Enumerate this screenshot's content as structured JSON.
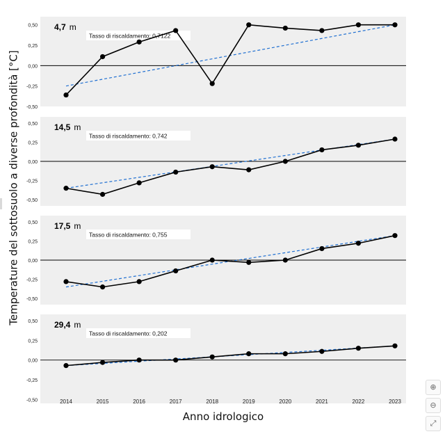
{
  "ylabel": "Temperature del sottosuolo a diverse profondità [°C]",
  "xlabel": "Anno idrologico",
  "toolbar": {
    "zoom_in_icon": "zoom-in-icon",
    "zoom_out_icon": "zoom-out-icon",
    "expand_icon": "expand-icon"
  },
  "colors": {
    "panel_bg": "#efefef",
    "line": "#000000",
    "trend": "#1f6fd1",
    "zero_line": "#000000"
  },
  "chart_data": [
    {
      "type": "line",
      "depth": "4,7",
      "unit": "m",
      "annotation": "Tasso di riscaldamento: 0,7122",
      "x": [
        2014,
        2015,
        2016,
        2017,
        2018,
        2019,
        2020,
        2021,
        2022,
        2023
      ],
      "values": [
        -0.36,
        0.11,
        0.29,
        0.43,
        -0.22,
        0.5,
        0.46,
        0.43,
        0.5,
        0.5
      ],
      "trend": [
        -0.25,
        0.5
      ],
      "ylim": [
        -0.5,
        0.6
      ],
      "yticks": [
        "-0,50",
        "-0,25",
        "0,00",
        "0,25",
        "0,50"
      ],
      "ytick_values": [
        -0.5,
        -0.25,
        0,
        0.25,
        0.5
      ]
    },
    {
      "type": "line",
      "depth": "14,5",
      "unit": "m",
      "annotation": "Tasso di riscaldamento: 0,742",
      "x": [
        2014,
        2015,
        2016,
        2017,
        2018,
        2019,
        2020,
        2021,
        2022,
        2023
      ],
      "values": [
        -0.35,
        -0.43,
        -0.28,
        -0.14,
        -0.07,
        -0.11,
        0.0,
        0.15,
        0.21,
        0.29
      ],
      "trend": [
        -0.35,
        0.29
      ],
      "ylim": [
        -0.58,
        0.58
      ],
      "yticks": [
        "-0,50",
        "-0,25",
        "0,00",
        "0,25",
        "0,50"
      ],
      "ytick_values": [
        -0.5,
        -0.25,
        0,
        0.25,
        0.5
      ]
    },
    {
      "type": "line",
      "depth": "17,5",
      "unit": "m",
      "annotation": "Tasso di riscaldamento: 0,755",
      "x": [
        2014,
        2015,
        2016,
        2017,
        2018,
        2019,
        2020,
        2021,
        2022,
        2023
      ],
      "values": [
        -0.28,
        -0.35,
        -0.28,
        -0.14,
        0.0,
        -0.03,
        0.0,
        0.15,
        0.22,
        0.32
      ],
      "trend": [
        -0.35,
        0.32
      ],
      "ylim": [
        -0.58,
        0.58
      ],
      "yticks": [
        "-0,50",
        "-0,25",
        "0,00",
        "0,25",
        "0,50"
      ],
      "ytick_values": [
        -0.5,
        -0.25,
        0,
        0.25,
        0.5
      ]
    },
    {
      "type": "line",
      "depth": "29,4",
      "unit": "m",
      "annotation": "Tasso di riscaldamento: 0,202",
      "x": [
        2014,
        2015,
        2016,
        2017,
        2018,
        2019,
        2020,
        2021,
        2022,
        2023
      ],
      "values": [
        -0.07,
        -0.03,
        0.0,
        0.0,
        0.04,
        0.08,
        0.08,
        0.11,
        0.15,
        0.18
      ],
      "trend": [
        -0.07,
        0.18
      ],
      "ylim": [
        -0.55,
        0.58
      ],
      "yticks": [
        "-0,50",
        "-0,25",
        "0,00",
        "0,25",
        "0,50"
      ],
      "ytick_values": [
        -0.5,
        -0.25,
        0,
        0.25,
        0.5
      ]
    }
  ]
}
